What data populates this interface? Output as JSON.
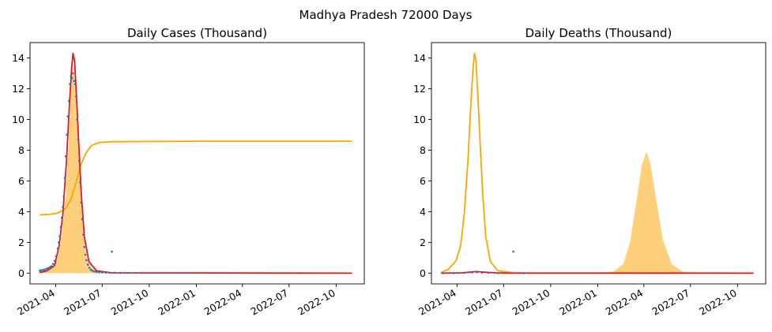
{
  "figure_title": "Madhya Pradesh 72000 Days",
  "colors": {
    "fill": "#ffc864",
    "fill_opacity": 0.85,
    "line_orange": "#ffa500",
    "line_red": "#e8141e",
    "dots": "#1f77b4"
  },
  "chart_data": [
    {
      "type": "line",
      "title": "Daily Cases (Thousand)",
      "xlabel": "",
      "ylabel": "",
      "x_type": "date",
      "xlim": [
        "2021-02-10",
        "2022-11-25"
      ],
      "ylim": [
        -0.7,
        15
      ],
      "x_ticks": [
        "2021-04-01",
        "2021-07-01",
        "2021-10-01",
        "2022-01-01",
        "2022-04-01",
        "2022-07-01",
        "2022-10-01"
      ],
      "x_tick_labels": [
        "2021-04",
        "2021-07",
        "2021-10",
        "2022-01",
        "2022-04",
        "2022-07",
        "2022-10"
      ],
      "y_ticks": [
        0,
        2,
        4,
        6,
        8,
        10,
        12,
        14
      ],
      "grid": false,
      "series": [
        {
          "kind": "area",
          "color": "fill",
          "points": [
            [
              "2021-03-01",
              0.02
            ],
            [
              "2021-03-10",
              0.12
            ],
            [
              "2021-03-20",
              0.25
            ],
            [
              "2021-03-30",
              0.55
            ],
            [
              "2021-04-05",
              1.0
            ],
            [
              "2021-04-12",
              2.1
            ],
            [
              "2021-04-20",
              4.6
            ],
            [
              "2021-04-26",
              8.0
            ],
            [
              "2021-04-30",
              11.0
            ],
            [
              "2021-05-03",
              12.8
            ],
            [
              "2021-05-05",
              13.4
            ],
            [
              "2021-05-08",
              12.7
            ],
            [
              "2021-05-12",
              10.3
            ],
            [
              "2021-05-16",
              7.6
            ],
            [
              "2021-05-20",
              5.0
            ],
            [
              "2021-05-25",
              2.6
            ],
            [
              "2021-06-01",
              1.0
            ],
            [
              "2021-06-10",
              0.35
            ],
            [
              "2021-06-25",
              0.1
            ],
            [
              "2021-07-20",
              0.02
            ],
            [
              "2022-11-01",
              0.0
            ]
          ]
        },
        {
          "kind": "line",
          "color": "line_orange",
          "points": [
            [
              "2021-03-01",
              3.8
            ],
            [
              "2021-03-20",
              3.82
            ],
            [
              "2021-04-05",
              3.9
            ],
            [
              "2021-04-20",
              4.2
            ],
            [
              "2021-05-01",
              4.8
            ],
            [
              "2021-05-10",
              5.8
            ],
            [
              "2021-05-20",
              7.0
            ],
            [
              "2021-05-30",
              7.8
            ],
            [
              "2021-06-10",
              8.3
            ],
            [
              "2021-06-25",
              8.5
            ],
            [
              "2021-07-20",
              8.55
            ],
            [
              "2022-01-01",
              8.58
            ],
            [
              "2022-11-01",
              8.58
            ]
          ]
        },
        {
          "kind": "line",
          "color": "line_red",
          "points": [
            [
              "2021-03-01",
              0.03
            ],
            [
              "2021-03-15",
              0.15
            ],
            [
              "2021-03-30",
              0.5
            ],
            [
              "2021-04-08",
              1.8
            ],
            [
              "2021-04-15",
              3.8
            ],
            [
              "2021-04-22",
              7.2
            ],
            [
              "2021-04-28",
              11.0
            ],
            [
              "2021-05-02",
              13.2
            ],
            [
              "2021-05-05",
              14.3
            ],
            [
              "2021-05-08",
              13.8
            ],
            [
              "2021-05-12",
              11.4
            ],
            [
              "2021-05-16",
              8.6
            ],
            [
              "2021-05-21",
              5.2
            ],
            [
              "2021-05-27",
              2.4
            ],
            [
              "2021-06-05",
              0.75
            ],
            [
              "2021-06-20",
              0.15
            ],
            [
              "2021-07-20",
              0.02
            ],
            [
              "2022-11-01",
              0.0
            ]
          ]
        },
        {
          "kind": "scatter",
          "color": "dots",
          "points": [
            [
              "2021-03-01",
              0.15
            ],
            [
              "2021-03-03",
              0.18
            ],
            [
              "2021-03-06",
              0.2
            ],
            [
              "2021-03-09",
              0.22
            ],
            [
              "2021-03-12",
              0.25
            ],
            [
              "2021-03-15",
              0.3
            ],
            [
              "2021-03-18",
              0.32
            ],
            [
              "2021-03-21",
              0.4
            ],
            [
              "2021-03-24",
              0.45
            ],
            [
              "2021-03-27",
              0.6
            ],
            [
              "2021-03-30",
              0.8
            ],
            [
              "2021-04-02",
              1.1
            ],
            [
              "2021-04-05",
              1.6
            ],
            [
              "2021-04-07",
              2.0
            ],
            [
              "2021-04-09",
              2.4
            ],
            [
              "2021-04-11",
              3.0
            ],
            [
              "2021-04-13",
              3.6
            ],
            [
              "2021-04-15",
              4.3
            ],
            [
              "2021-04-17",
              5.0
            ],
            [
              "2021-04-19",
              6.2
            ],
            [
              "2021-04-21",
              7.6
            ],
            [
              "2021-04-23",
              9.0
            ],
            [
              "2021-04-25",
              10.2
            ],
            [
              "2021-04-27",
              11.2
            ],
            [
              "2021-04-29",
              12.3
            ],
            [
              "2021-05-01",
              12.8
            ],
            [
              "2021-05-03",
              12.7
            ],
            [
              "2021-05-05",
              13.0
            ],
            [
              "2021-05-07",
              12.5
            ],
            [
              "2021-05-09",
              12.3
            ],
            [
              "2021-05-11",
              11.5
            ],
            [
              "2021-05-13",
              10.0
            ],
            [
              "2021-05-15",
              8.7
            ],
            [
              "2021-05-17",
              7.3
            ],
            [
              "2021-05-19",
              5.9
            ],
            [
              "2021-05-21",
              4.6
            ],
            [
              "2021-05-23",
              3.5
            ],
            [
              "2021-05-25",
              2.5
            ],
            [
              "2021-05-27",
              1.7
            ],
            [
              "2021-05-29",
              1.2
            ],
            [
              "2021-05-31",
              0.85
            ],
            [
              "2021-06-03",
              0.55
            ],
            [
              "2021-06-06",
              0.35
            ],
            [
              "2021-06-09",
              0.22
            ],
            [
              "2021-06-12",
              0.15
            ],
            [
              "2021-06-16",
              0.1
            ],
            [
              "2021-06-20",
              0.07
            ],
            [
              "2021-06-25",
              0.05
            ],
            [
              "2021-07-01",
              0.04
            ],
            [
              "2021-07-08",
              0.03
            ],
            [
              "2021-07-15",
              0.03
            ],
            [
              "2021-07-20",
              1.4
            ],
            [
              "2021-07-25",
              0.03
            ],
            [
              "2021-08-05",
              0.02
            ],
            [
              "2021-08-20",
              0.02
            ],
            [
              "2021-09-05",
              0.02
            ]
          ]
        }
      ]
    },
    {
      "type": "line",
      "title": "Daily Deaths (Thousand)",
      "xlabel": "",
      "ylabel": "",
      "x_type": "date",
      "xlim": [
        "2021-02-10",
        "2022-11-25"
      ],
      "ylim": [
        -0.7,
        15
      ],
      "x_ticks": [
        "2021-04-01",
        "2021-07-01",
        "2021-10-01",
        "2022-01-01",
        "2022-04-01",
        "2022-07-01",
        "2022-10-01"
      ],
      "x_tick_labels": [
        "2021-04",
        "2021-07",
        "2021-10",
        "2022-01",
        "2022-04",
        "2022-07",
        "2022-10"
      ],
      "y_ticks": [
        0,
        2,
        4,
        6,
        8,
        10,
        12,
        14
      ],
      "grid": false,
      "series": [
        {
          "kind": "area",
          "color": "fill",
          "points": [
            [
              "2021-03-01",
              0.0
            ],
            [
              "2022-01-01",
              0.0
            ],
            [
              "2022-02-01",
              0.1
            ],
            [
              "2022-02-20",
              0.6
            ],
            [
              "2022-03-05",
              2.0
            ],
            [
              "2022-03-18",
              4.8
            ],
            [
              "2022-03-28",
              7.0
            ],
            [
              "2022-04-06",
              7.9
            ],
            [
              "2022-04-14",
              7.1
            ],
            [
              "2022-04-25",
              4.8
            ],
            [
              "2022-05-08",
              2.2
            ],
            [
              "2022-05-25",
              0.6
            ],
            [
              "2022-06-15",
              0.1
            ],
            [
              "2022-07-15",
              0.0
            ],
            [
              "2022-11-01",
              0.0
            ]
          ]
        },
        {
          "kind": "line",
          "color": "line_orange",
          "points": [
            [
              "2021-03-01",
              0.05
            ],
            [
              "2021-03-15",
              0.25
            ],
            [
              "2021-03-30",
              0.8
            ],
            [
              "2021-04-08",
              1.8
            ],
            [
              "2021-04-15",
              3.8
            ],
            [
              "2021-04-22",
              7.2
            ],
            [
              "2021-04-28",
              11.0
            ],
            [
              "2021-05-02",
              13.2
            ],
            [
              "2021-05-05",
              14.3
            ],
            [
              "2021-05-08",
              13.8
            ],
            [
              "2021-05-12",
              11.4
            ],
            [
              "2021-05-16",
              8.6
            ],
            [
              "2021-05-21",
              5.2
            ],
            [
              "2021-05-27",
              2.4
            ],
            [
              "2021-06-05",
              0.75
            ],
            [
              "2021-06-20",
              0.15
            ],
            [
              "2021-07-20",
              0.02
            ],
            [
              "2022-11-01",
              0.0
            ]
          ]
        },
        {
          "kind": "line",
          "color": "line_red",
          "points": [
            [
              "2021-03-01",
              0.0
            ],
            [
              "2021-04-10",
              0.02
            ],
            [
              "2021-04-25",
              0.06
            ],
            [
              "2021-05-08",
              0.1
            ],
            [
              "2021-05-25",
              0.06
            ],
            [
              "2021-06-15",
              0.02
            ],
            [
              "2021-07-15",
              0.0
            ],
            [
              "2022-11-01",
              0.0
            ]
          ]
        },
        {
          "kind": "scatter",
          "color": "dots",
          "points": [
            [
              "2021-03-05",
              0.0
            ],
            [
              "2021-03-25",
              0.0
            ],
            [
              "2021-04-15",
              0.02
            ],
            [
              "2021-05-01",
              0.05
            ],
            [
              "2021-05-10",
              0.06
            ],
            [
              "2021-05-20",
              0.04
            ],
            [
              "2021-06-01",
              0.02
            ],
            [
              "2021-06-20",
              0.0
            ],
            [
              "2021-07-20",
              1.4
            ],
            [
              "2021-08-10",
              0.0
            ]
          ]
        }
      ]
    }
  ]
}
